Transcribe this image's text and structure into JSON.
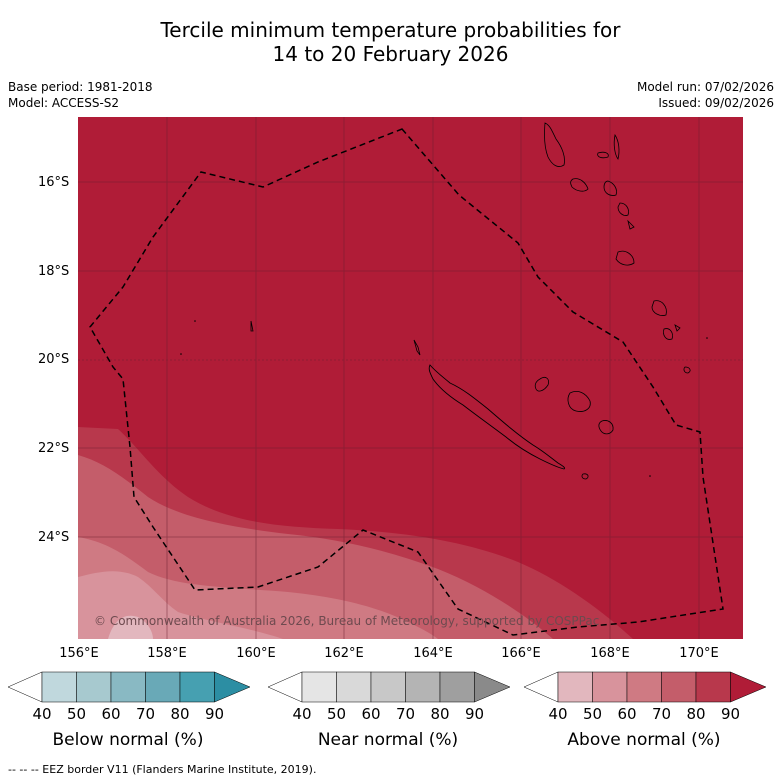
{
  "title_line1": "Tercile minimum temperature probabilities for",
  "title_line2": "14 to 20 February 2026",
  "base_period": "Base period: 1981-2018",
  "model": "Model: ACCESS-S2",
  "model_run": "Model run: 07/02/2026",
  "issued": "Issued: 09/02/2026",
  "lat_labels": [
    "16°S",
    "18°S",
    "20°S",
    "22°S",
    "24°S"
  ],
  "lon_labels": [
    "156°E",
    "158°E",
    "160°E",
    "162°E",
    "164°E",
    "166°E",
    "168°E",
    "170°E"
  ],
  "copyright": "© Commonwealth of Australia 2026, Bureau of Meteorology, supported by COSPPac",
  "colorbars": [
    {
      "title": "Below normal (%)",
      "ticks": [
        "40",
        "50",
        "60",
        "70",
        "80",
        "90"
      ],
      "colors": [
        "#ffffff",
        "#c0d8dd",
        "#a7c9cf",
        "#89b9c3",
        "#69a9b7",
        "#46a0b1",
        "#2c8ea3"
      ]
    },
    {
      "title": "Near normal (%)",
      "ticks": [
        "40",
        "50",
        "60",
        "70",
        "80",
        "90"
      ],
      "colors": [
        "#ffffff",
        "#e5e5e5",
        "#d9d9d9",
        "#c8c8c8",
        "#b4b4b4",
        "#9f9f9f",
        "#8a8a8a"
      ]
    },
    {
      "title": "Above normal (%)",
      "ticks": [
        "40",
        "50",
        "60",
        "70",
        "80",
        "90"
      ],
      "colors": [
        "#ffffff",
        "#e2b7be",
        "#d8939c",
        "#cf7a83",
        "#c45d6a",
        "#b8384c",
        "#b01c37"
      ]
    }
  ],
  "footer": "--  --  -- EEZ border V11 (Flanders Marine Institute, 2019)."
}
